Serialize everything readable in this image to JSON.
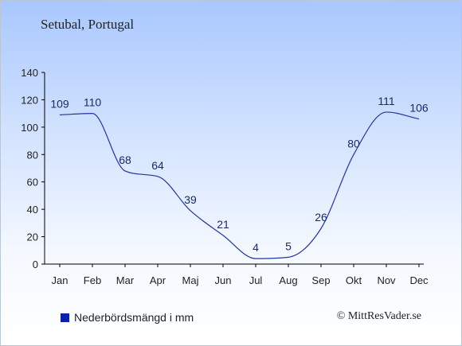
{
  "colors": {
    "line": "#2036a0",
    "axis": "#000000",
    "legend_swatch": "#0a22a8"
  },
  "legend": {
    "label": "Nederbördsmängd i mm"
  },
  "credit": "© MittResVader.se",
  "chart_data": {
    "type": "line",
    "title": "Setubal, Portugal",
    "xlabel": "",
    "ylabel": "",
    "categories": [
      "Jan",
      "Feb",
      "Mar",
      "Apr",
      "Maj",
      "Jun",
      "Jul",
      "Aug",
      "Sep",
      "Okt",
      "Nov",
      "Dec"
    ],
    "yticks": [
      0,
      20,
      40,
      60,
      80,
      100,
      120,
      140
    ],
    "ylim": [
      0,
      140
    ],
    "grid": false,
    "legend_position": "bottom-left",
    "series": [
      {
        "name": "Nederbördsmängd i mm",
        "values": [
          109,
          110,
          68,
          64,
          39,
          21,
          4,
          5,
          26,
          80,
          111,
          106
        ]
      }
    ]
  }
}
